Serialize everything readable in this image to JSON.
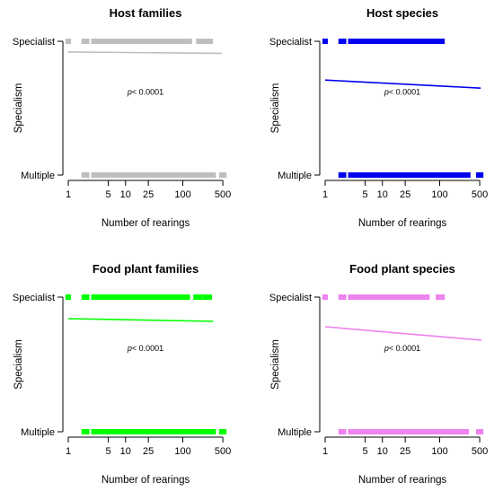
{
  "chart_data": [
    {
      "type": "scatter",
      "title": "Host families",
      "xlabel": "Number of rearings",
      "ylabel": "Specialism",
      "x_scale": "log",
      "xlim": [
        1,
        500
      ],
      "x_ticks": [
        "1",
        "5",
        "10",
        "25",
        "100",
        "500"
      ],
      "y_ticks": [
        "Specialist",
        "Multiple"
      ],
      "annotation": "p< 0.0001",
      "color": "#bebebe",
      "specialist_ranges": [
        [
          1.0,
          1.0
        ],
        [
          1.9,
          2.1
        ],
        [
          2.8,
          3.0
        ],
        [
          3.4,
          130
        ],
        [
          190,
          300
        ]
      ],
      "multiple_ranges": [
        [
          1.9,
          2.1
        ],
        [
          2.8,
          3.0
        ],
        [
          3.4,
          340
        ],
        [
          480,
          520
        ]
      ],
      "fit_line": {
        "x": [
          1,
          480
        ],
        "y": [
          0.92,
          0.91
        ]
      }
    },
    {
      "type": "scatter",
      "title": "Host species",
      "xlabel": "Number of rearings",
      "ylabel": "Specialism",
      "x_scale": "log",
      "xlim": [
        1,
        500
      ],
      "x_ticks": [
        "1",
        "5",
        "10",
        "25",
        "100",
        "500"
      ],
      "y_ticks": [
        "Specialist",
        "Multiple"
      ],
      "annotation": "p< 0.0001",
      "color": "#0000ee",
      "specialist_ranges": [
        [
          1.0,
          1.0
        ],
        [
          1.9,
          2.1
        ],
        [
          2.8,
          3.0
        ],
        [
          3.4,
          65
        ],
        [
          75,
          110
        ]
      ],
      "multiple_ranges": [
        [
          1.9,
          2.1
        ],
        [
          2.8,
          3.0
        ],
        [
          3.4,
          310
        ],
        [
          480,
          520
        ]
      ],
      "fit_line": {
        "x": [
          1,
          520
        ],
        "y": [
          0.71,
          0.65
        ]
      }
    },
    {
      "type": "scatter",
      "title": "Food plant families",
      "xlabel": "Number of rearings",
      "ylabel": "Specialism",
      "x_scale": "log",
      "xlim": [
        1,
        500
      ],
      "x_ticks": [
        "1",
        "5",
        "10",
        "25",
        "100",
        "500"
      ],
      "y_ticks": [
        "Specialist",
        "Multiple"
      ],
      "annotation": "p< 0.0001",
      "color": "#00ff00",
      "specialist_ranges": [
        [
          1.0,
          1.0
        ],
        [
          1.9,
          2.1
        ],
        [
          2.8,
          3.0
        ],
        [
          3.4,
          120
        ],
        [
          170,
          200
        ],
        [
          250,
          290
        ]
      ],
      "multiple_ranges": [
        [
          1.9,
          2.1
        ],
        [
          2.8,
          3.0
        ],
        [
          3.4,
          340
        ],
        [
          480,
          520
        ]
      ],
      "fit_line": {
        "x": [
          1,
          340
        ],
        "y": [
          0.84,
          0.82
        ]
      }
    },
    {
      "type": "scatter",
      "title": "Food plant species",
      "xlabel": "Number of rearings",
      "ylabel": "Specialism",
      "x_scale": "log",
      "xlim": [
        1,
        500
      ],
      "x_ticks": [
        "1",
        "5",
        "10",
        "25",
        "100",
        "500"
      ],
      "y_ticks": [
        "Specialist",
        "Multiple"
      ],
      "annotation": "p< 0.0001",
      "color": "#ee82ee",
      "specialist_ranges": [
        [
          1.0,
          1.0
        ],
        [
          1.9,
          2.1
        ],
        [
          2.8,
          3.0
        ],
        [
          3.4,
          38
        ],
        [
          45,
          60
        ],
        [
          95,
          110
        ]
      ],
      "multiple_ranges": [
        [
          1.9,
          2.1
        ],
        [
          2.8,
          3.0
        ],
        [
          3.4,
          290
        ],
        [
          480,
          520
        ]
      ],
      "fit_line": {
        "x": [
          1,
          540
        ],
        "y": [
          0.78,
          0.68
        ]
      }
    }
  ]
}
